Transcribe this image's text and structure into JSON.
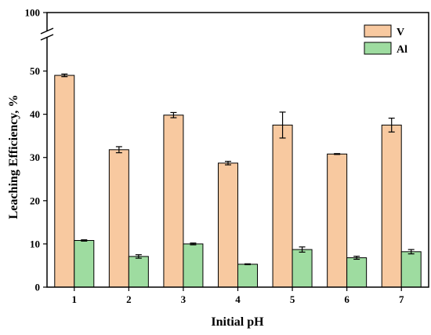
{
  "chart_data": {
    "type": "bar",
    "title": "",
    "xlabel": "Initial pH",
    "ylabel": "Leaching Efficiency, %",
    "categories": [
      "1",
      "2",
      "3",
      "4",
      "5",
      "6",
      "7"
    ],
    "series": [
      {
        "name": "V",
        "values": [
          49.0,
          31.8,
          39.8,
          28.7,
          37.5,
          30.8,
          37.5
        ],
        "errors": [
          0.3,
          0.7,
          0.6,
          0.4,
          3.0,
          0.1,
          1.6
        ],
        "color": "#f8c9a0"
      },
      {
        "name": "Al",
        "values": [
          10.8,
          7.1,
          10.0,
          5.3,
          8.7,
          6.8,
          8.2
        ],
        "errors": [
          0.15,
          0.4,
          0.2,
          0.1,
          0.6,
          0.35,
          0.5
        ],
        "color": "#9edca0"
      }
    ],
    "ylim": [
      0,
      55
    ],
    "axis_break": {
      "lower_max": 55,
      "upper_tick": 100
    },
    "yticks": [
      "0",
      "10",
      "20",
      "30",
      "40",
      "50",
      "100"
    ],
    "legend": "top-right",
    "grid": false
  }
}
